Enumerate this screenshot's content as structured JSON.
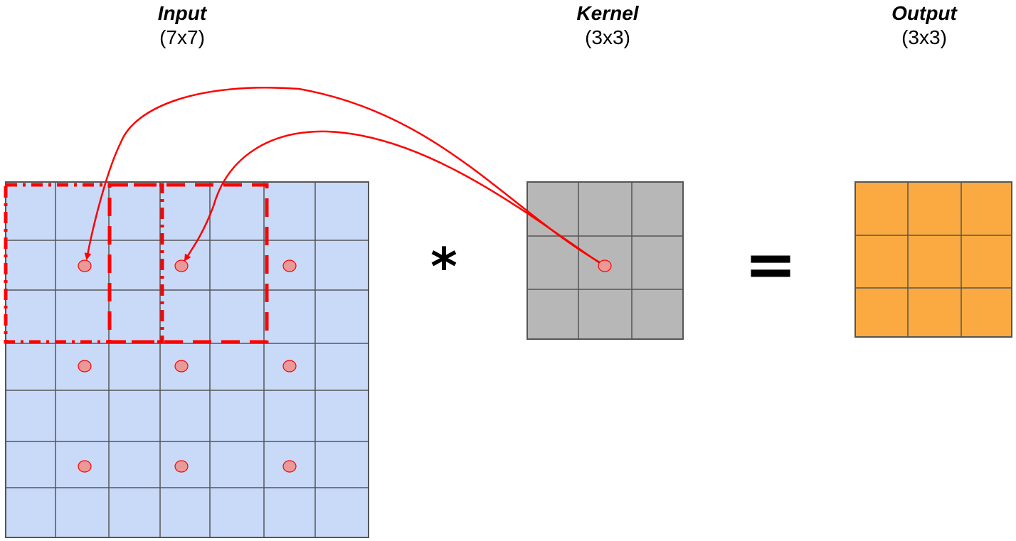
{
  "labels": {
    "input": {
      "title": "Input",
      "dims": "(7x7)"
    },
    "kernel": {
      "title": "Kernel",
      "dims": "(3x3)"
    },
    "output": {
      "title": "Output",
      "dims": "(3x3)"
    }
  },
  "operators": {
    "convolve": "*",
    "equals": "="
  },
  "grids": {
    "input": {
      "rows": 7,
      "cols": 7,
      "fill": "#c9daf8"
    },
    "kernel": {
      "rows": 3,
      "cols": 3,
      "fill": "#b7b7b7"
    },
    "output": {
      "rows": 3,
      "cols": 3,
      "fill": "#fbaa42"
    }
  },
  "colors": {
    "highlight": "#ff0000",
    "grid_line": "#555555",
    "dot_fill": "#ea9999"
  }
}
